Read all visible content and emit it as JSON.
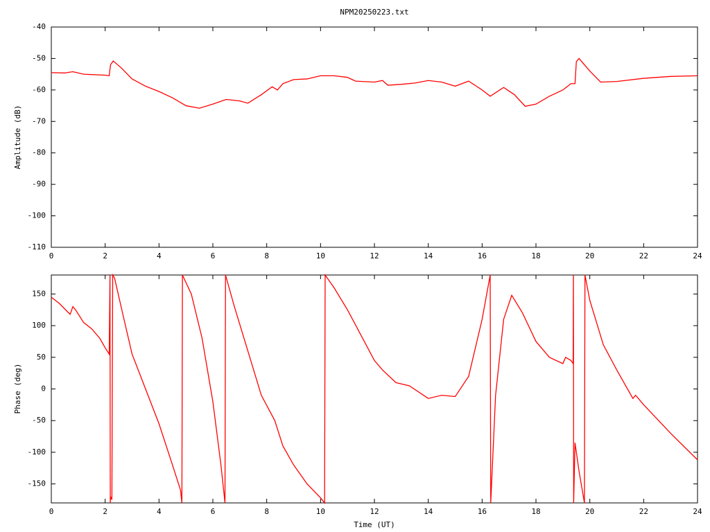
{
  "chart_data": [
    {
      "type": "line",
      "title": "NPM20250223.txt",
      "ylabel": "Amplitude (dB)",
      "xlim": [
        0,
        24
      ],
      "xticks": [
        0,
        2,
        4,
        6,
        8,
        10,
        12,
        14,
        16,
        18,
        20,
        22,
        24
      ],
      "ylim": [
        -110,
        -40
      ],
      "yticks": [
        -110,
        -100,
        -90,
        -80,
        -70,
        -60,
        -50,
        -40
      ],
      "series": [
        {
          "color": "#ff0000",
          "x": [
            0,
            0.5,
            0.8,
            1.2,
            2.0,
            2.15,
            2.2,
            2.3,
            2.6,
            3.0,
            3.5,
            4.0,
            4.5,
            5.0,
            5.5,
            6.0,
            6.5,
            7.0,
            7.3,
            7.8,
            8.2,
            8.4,
            8.6,
            9.0,
            9.5,
            10.0,
            10.5,
            11.0,
            11.3,
            12.0,
            12.3,
            12.5,
            13.0,
            13.5,
            14.0,
            14.5,
            15.0,
            15.5,
            16.0,
            16.3,
            16.8,
            17.2,
            17.6,
            18.0,
            18.5,
            19.0,
            19.3,
            19.45,
            19.5,
            19.6,
            20.0,
            20.4,
            21.0,
            22.0,
            23.0,
            24.0
          ],
          "values": [
            -54.5,
            -54.6,
            -54.2,
            -55,
            -55.3,
            -55.5,
            -52,
            -50.8,
            -53,
            -56.5,
            -58.8,
            -60.5,
            -62.5,
            -65,
            -65.8,
            -64.5,
            -63,
            -63.5,
            -64.2,
            -61.5,
            -59,
            -60,
            -58,
            -56.7,
            -56.5,
            -55.5,
            -55.5,
            -56,
            -57.2,
            -57.5,
            -57,
            -58.5,
            -58.2,
            -57.8,
            -57,
            -57.5,
            -58.8,
            -57.2,
            -60,
            -62,
            -59.2,
            -61.5,
            -65.2,
            -64.5,
            -62,
            -60,
            -58,
            -58,
            -51,
            -50,
            -54,
            -57.5,
            -57.3,
            -56.3,
            -55.7,
            -55.5
          ]
        }
      ]
    },
    {
      "type": "line",
      "xlabel": "Time (UT)",
      "ylabel": "Phase (deg)",
      "xlim": [
        0,
        24
      ],
      "xticks": [
        0,
        2,
        4,
        6,
        8,
        10,
        12,
        14,
        16,
        18,
        20,
        22,
        24
      ],
      "ylim": [
        -180,
        180
      ],
      "yticks": [
        -150,
        -100,
        -50,
        0,
        50,
        100,
        150
      ],
      "series": [
        {
          "color": "#ff0000",
          "x": [
            0,
            0.3,
            0.6,
            0.7,
            0.8,
            0.9,
            1.2,
            1.5,
            1.8,
            2.0,
            2.15,
            2.18,
            2.19,
            2.2,
            2.25,
            2.28,
            2.35,
            2.7,
            3.0,
            3.5,
            4.0,
            4.5,
            4.8,
            4.85,
            4.87,
            5.2,
            5.6,
            6.0,
            6.3,
            6.45,
            6.47,
            6.8,
            7.3,
            7.8,
            8.3,
            8.6,
            9.0,
            9.5,
            10.0,
            10.15,
            10.17,
            10.5,
            11.0,
            11.5,
            12.0,
            12.3,
            12.8,
            13.3,
            14.0,
            14.5,
            15.0,
            15.5,
            16.0,
            16.3,
            16.32,
            16.5,
            16.8,
            17.1,
            17.5,
            18.0,
            18.5,
            19.0,
            19.1,
            19.3,
            19.38,
            19.39,
            19.4,
            19.45,
            19.6,
            19.8,
            19.82,
            20.0,
            20.5,
            21.0,
            21.6,
            21.7,
            22.0,
            23.0,
            24.0
          ],
          "values": [
            145,
            135,
            122,
            118,
            130,
            125,
            105,
            95,
            80,
            65,
            55,
            180,
            -180,
            -170,
            -175,
            180,
            175,
            110,
            55,
            0,
            -55,
            -120,
            -160,
            -180,
            180,
            150,
            80,
            -20,
            -120,
            -180,
            180,
            130,
            60,
            -10,
            -50,
            -90,
            -120,
            -150,
            -172,
            -180,
            180,
            160,
            125,
            85,
            45,
            30,
            10,
            5,
            -15,
            -10,
            -12,
            20,
            110,
            180,
            -180,
            -10,
            110,
            148,
            120,
            75,
            50,
            40,
            50,
            45,
            40,
            180,
            -180,
            -85,
            -130,
            -180,
            180,
            140,
            70,
            30,
            -15,
            -10,
            -25,
            -70,
            -112
          ]
        }
      ]
    }
  ]
}
